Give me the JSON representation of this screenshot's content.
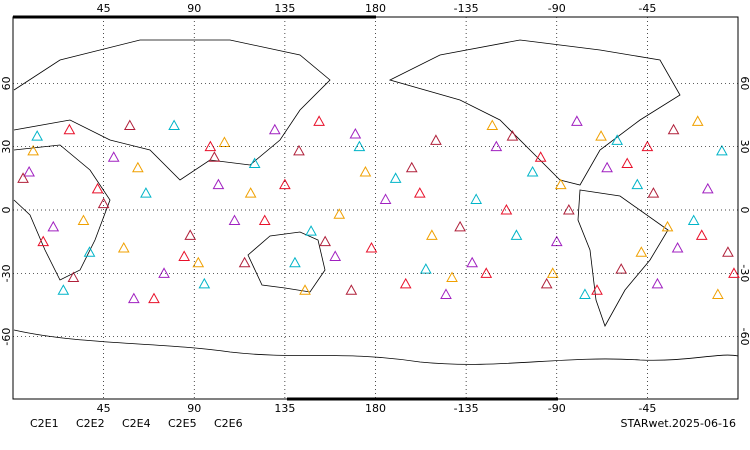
{
  "chart_data": {
    "type": "scatter",
    "footer": "STARwet.2025-06-16",
    "xlim": [
      0,
      360
    ],
    "ylim": [
      -90,
      90
    ],
    "xticks": [
      45,
      90,
      135,
      180,
      {
        "value": 225,
        "label": "-135"
      },
      {
        "value": 270,
        "label": "-90"
      },
      {
        "value": 315,
        "label": "-45"
      }
    ],
    "yticks": [
      -60,
      -30,
      0,
      30,
      60
    ],
    "grid": true,
    "series": [
      {
        "name": "C2E1",
        "color": "#00b4c8",
        "x": [
          12,
          38,
          66,
          95,
          120,
          148,
          172,
          205,
          230,
          258,
          284,
          310,
          338,
          352,
          25,
          80,
          140,
          190,
          250,
          300
        ],
        "values": [
          35,
          -20,
          8,
          -35,
          22,
          -10,
          30,
          -28,
          5,
          18,
          -40,
          12,
          -5,
          28,
          -38,
          40,
          -25,
          15,
          -12,
          33
        ]
      },
      {
        "name": "C2E2",
        "color": "#a020c0",
        "x": [
          20,
          50,
          75,
          102,
          130,
          160,
          185,
          215,
          240,
          270,
          295,
          320,
          345,
          8,
          60,
          110,
          170,
          228,
          280,
          330
        ],
        "values": [
          -8,
          25,
          -30,
          12,
          38,
          -22,
          5,
          -40,
          30,
          -15,
          20,
          -35,
          10,
          18,
          -42,
          -5,
          36,
          -25,
          42,
          -18
        ]
      },
      {
        "name": "C2E4",
        "color": "#b0203a",
        "x": [
          5,
          30,
          58,
          88,
          115,
          142,
          168,
          198,
          222,
          248,
          276,
          302,
          328,
          355,
          45,
          100,
          155,
          210,
          265,
          318
        ],
        "values": [
          15,
          -32,
          40,
          -12,
          -25,
          28,
          -38,
          20,
          -8,
          35,
          0,
          -28,
          38,
          -20,
          3,
          25,
          -15,
          33,
          -35,
          8
        ]
      },
      {
        "name": "C2E5",
        "color": "#e8102a",
        "x": [
          15,
          42,
          70,
          98,
          125,
          152,
          178,
          202,
          235,
          262,
          290,
          315,
          342,
          28,
          85,
          135,
          195,
          245,
          305,
          358
        ],
        "values": [
          -15,
          10,
          -42,
          30,
          -5,
          42,
          -18,
          8,
          -30,
          25,
          -38,
          30,
          -12,
          38,
          -22,
          12,
          -35,
          0,
          22,
          -30
        ]
      },
      {
        "name": "C2E6",
        "color": "#f0a000",
        "x": [
          10,
          35,
          62,
          92,
          118,
          145,
          175,
          208,
          238,
          268,
          292,
          325,
          350,
          55,
          105,
          162,
          218,
          272,
          312,
          340
        ],
        "values": [
          28,
          -5,
          20,
          -25,
          8,
          -38,
          18,
          -12,
          40,
          -30,
          35,
          -8,
          -40,
          -18,
          32,
          -2,
          -32,
          12,
          -20,
          42
        ]
      }
    ]
  }
}
